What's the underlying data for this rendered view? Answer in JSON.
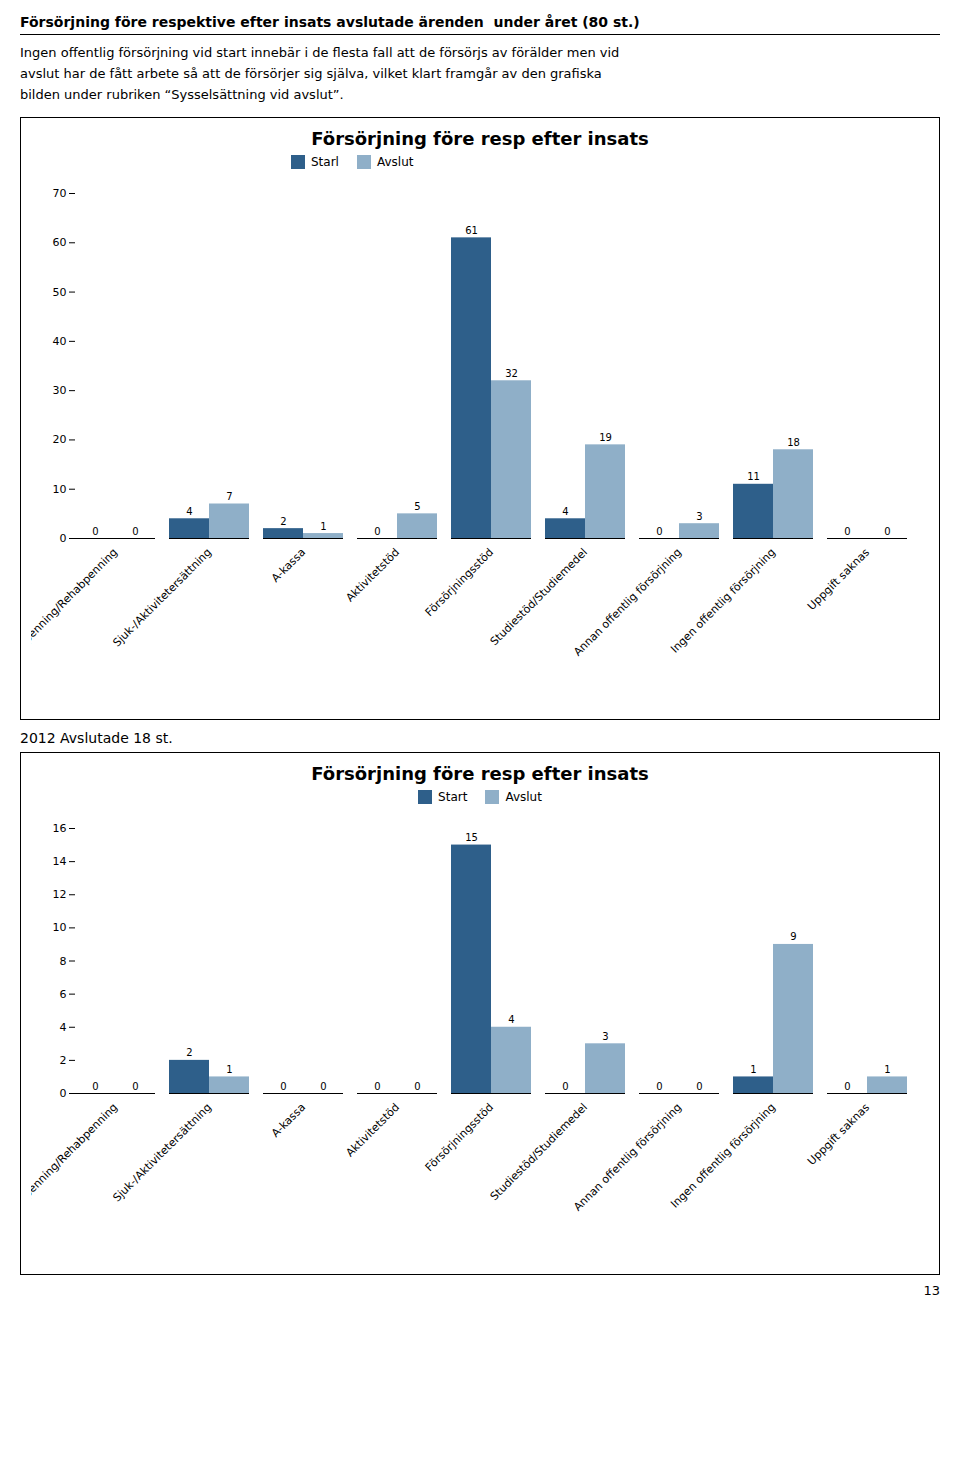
{
  "title": "Försörjning före respektive efter insats avslutade ärenden  under året (80 st.)",
  "annotations": [
    "Ingen offentlig försörjning vid start innebär i de flesta fall att de försörjs av förälder men vid\navslut har de fått arbete så att de försörjer sig själva, vilket klart framgår av den grafiska\nbilden under rubriken “Sysselsättning vid avslut”.",
    "13"
  ],
  "chart_data": [
    {
      "type": "bar",
      "title": "Försörjning före resp efter insats",
      "categories": [
        "Sjukpenning/Rehabpenning",
        "Sjuk-/Aktivitetersättning",
        "A-kassa",
        "Aktivitetstöd",
        "Försörjningsstöd",
        "Studiestöd/Studiemedel",
        "Annan offentlig försörjning",
        "Ingen offentlig försörjning",
        "Uppgift saknas"
      ],
      "series": [
        {
          "name": "Starl",
          "color": "#2E5F8A",
          "values": [
            0,
            4,
            2,
            0,
            61,
            4,
            0,
            11,
            0
          ]
        },
        {
          "name": "Avslut",
          "color": "#8FAFC8",
          "values": [
            0,
            7,
            1,
            5,
            32,
            19,
            3,
            18,
            0
          ]
        }
      ],
      "ylim": [
        0,
        70
      ],
      "yticks": [
        0,
        10,
        20,
        30,
        40,
        50,
        60,
        70
      ],
      "grid": false,
      "legend": "upper left",
      "data_labels": true
    },
    {
      "type": "bar",
      "title": "Försörjning före resp efter insats",
      "subtitle": "2012 Avslutade 18 st.",
      "categories": [
        "Sjukpenning/Rehabpenning",
        "Sjuk-/Aktivitetersättning",
        "A-kassa",
        "Aktivitetstöd",
        "Försörjningsstöd",
        "Studiestöd/Studiemedel",
        "Annan offentlig försörjning",
        "Ingen offentlig försörjning",
        "Uppgift saknas"
      ],
      "series": [
        {
          "name": "Start",
          "color": "#2E5F8A",
          "values": [
            0,
            2,
            0,
            0,
            15,
            0,
            0,
            1,
            0
          ]
        },
        {
          "name": "Avslut",
          "color": "#8FAFC8",
          "values": [
            0,
            1,
            0,
            0,
            4,
            3,
            0,
            9,
            1
          ]
        }
      ],
      "ylim": [
        0,
        16
      ],
      "yticks": [
        0,
        2,
        4,
        6,
        8,
        10,
        12,
        14,
        16
      ],
      "grid": false,
      "legend": "upper center",
      "data_labels": true
    }
  ]
}
